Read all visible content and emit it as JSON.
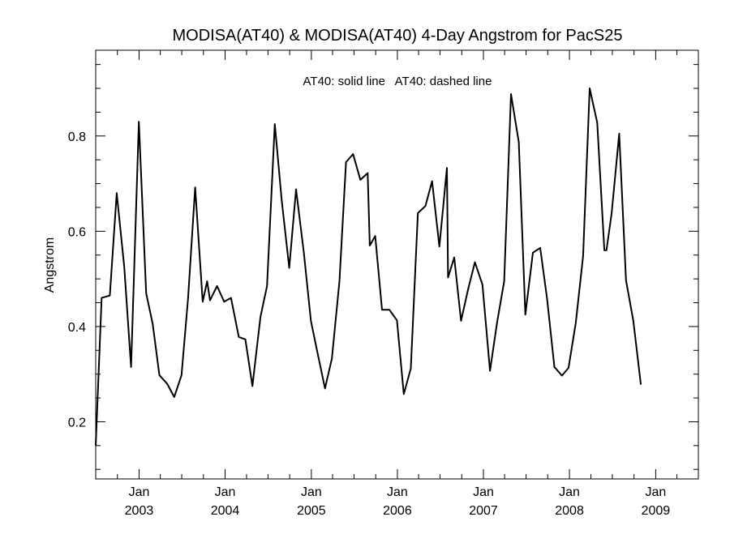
{
  "chart_data": {
    "type": "line",
    "title": "MODISA(AT40) & MODISA(AT40) 4-Day Angstrom for PacS25",
    "xlabel": "",
    "ylabel": "Angstrom",
    "legend_text": "AT40: solid line   AT40: dashed line",
    "xlim": [
      "2002-07-01",
      "2009-07-01"
    ],
    "ylim": [
      0.08,
      0.98
    ],
    "y_ticks": [
      0.2,
      0.4,
      0.6,
      0.8
    ],
    "y_tick_labels": [
      "0.2",
      "0.4",
      "0.6",
      "0.8"
    ],
    "x_ticks": [
      {
        "date": "2003-01-01",
        "month": "Jan",
        "year": "2003"
      },
      {
        "date": "2004-01-01",
        "month": "Jan",
        "year": "2004"
      },
      {
        "date": "2005-01-01",
        "month": "Jan",
        "year": "2005"
      },
      {
        "date": "2006-01-01",
        "month": "Jan",
        "year": "2006"
      },
      {
        "date": "2007-01-01",
        "month": "Jan",
        "year": "2007"
      },
      {
        "date": "2008-01-01",
        "month": "Jan",
        "year": "2008"
      },
      {
        "date": "2009-01-01",
        "month": "Jan",
        "year": "2009"
      }
    ],
    "grid": false,
    "series": [
      {
        "style": "solid",
        "color": "#000000",
        "points": [
          [
            "2002-07-01",
            0.15
          ],
          [
            "2002-07-26",
            0.46
          ],
          [
            "2002-08-30",
            0.465
          ],
          [
            "2002-09-28",
            0.68
          ],
          [
            "2002-10-30",
            0.525
          ],
          [
            "2002-11-28",
            0.315
          ],
          [
            "2002-12-31",
            0.83
          ],
          [
            "2003-01-31",
            0.47
          ],
          [
            "2003-02-28",
            0.405
          ],
          [
            "2003-03-28",
            0.298
          ],
          [
            "2003-04-30",
            0.28
          ],
          [
            "2003-05-30",
            0.252
          ],
          [
            "2003-06-30",
            0.298
          ],
          [
            "2003-07-28",
            0.46
          ],
          [
            "2003-08-27",
            0.692
          ],
          [
            "2003-09-28",
            0.452
          ],
          [
            "2003-10-17",
            0.495
          ],
          [
            "2003-10-29",
            0.455
          ],
          [
            "2003-11-28",
            0.485
          ],
          [
            "2003-12-28",
            0.452
          ],
          [
            "2004-01-26",
            0.46
          ],
          [
            "2004-02-28",
            0.378
          ],
          [
            "2004-03-27",
            0.373
          ],
          [
            "2004-04-26",
            0.275
          ],
          [
            "2004-05-30",
            0.42
          ],
          [
            "2004-06-27",
            0.485
          ],
          [
            "2004-07-30",
            0.825
          ],
          [
            "2004-08-28",
            0.665
          ],
          [
            "2004-09-29",
            0.523
          ],
          [
            "2004-10-28",
            0.688
          ],
          [
            "2004-11-30",
            0.555
          ],
          [
            "2004-12-30",
            0.412
          ],
          [
            "2005-01-27",
            0.345
          ],
          [
            "2005-02-28",
            0.27
          ],
          [
            "2005-03-29",
            0.333
          ],
          [
            "2005-04-30",
            0.495
          ],
          [
            "2005-05-28",
            0.745
          ],
          [
            "2005-06-27",
            0.762
          ],
          [
            "2005-07-28",
            0.708
          ],
          [
            "2005-08-28",
            0.722
          ],
          [
            "2005-09-06",
            0.57
          ],
          [
            "2005-09-29",
            0.59
          ],
          [
            "2005-10-28",
            0.435
          ],
          [
            "2005-11-28",
            0.435
          ],
          [
            "2005-12-30",
            0.413
          ],
          [
            "2006-01-28",
            0.258
          ],
          [
            "2006-02-27",
            0.312
          ],
          [
            "2006-03-29",
            0.638
          ],
          [
            "2006-04-30",
            0.653
          ],
          [
            "2006-05-28",
            0.705
          ],
          [
            "2006-06-28",
            0.568
          ],
          [
            "2006-07-30",
            0.733
          ],
          [
            "2006-08-04",
            0.503
          ],
          [
            "2006-08-30",
            0.545
          ],
          [
            "2006-09-28",
            0.412
          ],
          [
            "2006-10-28",
            0.478
          ],
          [
            "2006-11-26",
            0.535
          ],
          [
            "2006-12-28",
            0.488
          ],
          [
            "2007-01-29",
            0.307
          ],
          [
            "2007-02-28",
            0.408
          ],
          [
            "2007-03-30",
            0.495
          ],
          [
            "2007-04-28",
            0.888
          ],
          [
            "2007-05-31",
            0.787
          ],
          [
            "2007-06-28",
            0.425
          ],
          [
            "2007-07-30",
            0.555
          ],
          [
            "2007-08-30",
            0.565
          ],
          [
            "2007-09-28",
            0.458
          ],
          [
            "2007-10-29",
            0.315
          ],
          [
            "2007-11-30",
            0.297
          ],
          [
            "2007-12-28",
            0.313
          ],
          [
            "2008-01-28",
            0.408
          ],
          [
            "2008-02-28",
            0.548
          ],
          [
            "2008-03-27",
            0.9
          ],
          [
            "2008-04-28",
            0.828
          ],
          [
            "2008-05-28",
            0.56
          ],
          [
            "2008-06-06",
            0.56
          ],
          [
            "2008-06-28",
            0.638
          ],
          [
            "2008-07-30",
            0.805
          ],
          [
            "2008-08-28",
            0.497
          ],
          [
            "2008-09-28",
            0.412
          ],
          [
            "2008-10-30",
            0.278
          ]
        ]
      }
    ]
  }
}
